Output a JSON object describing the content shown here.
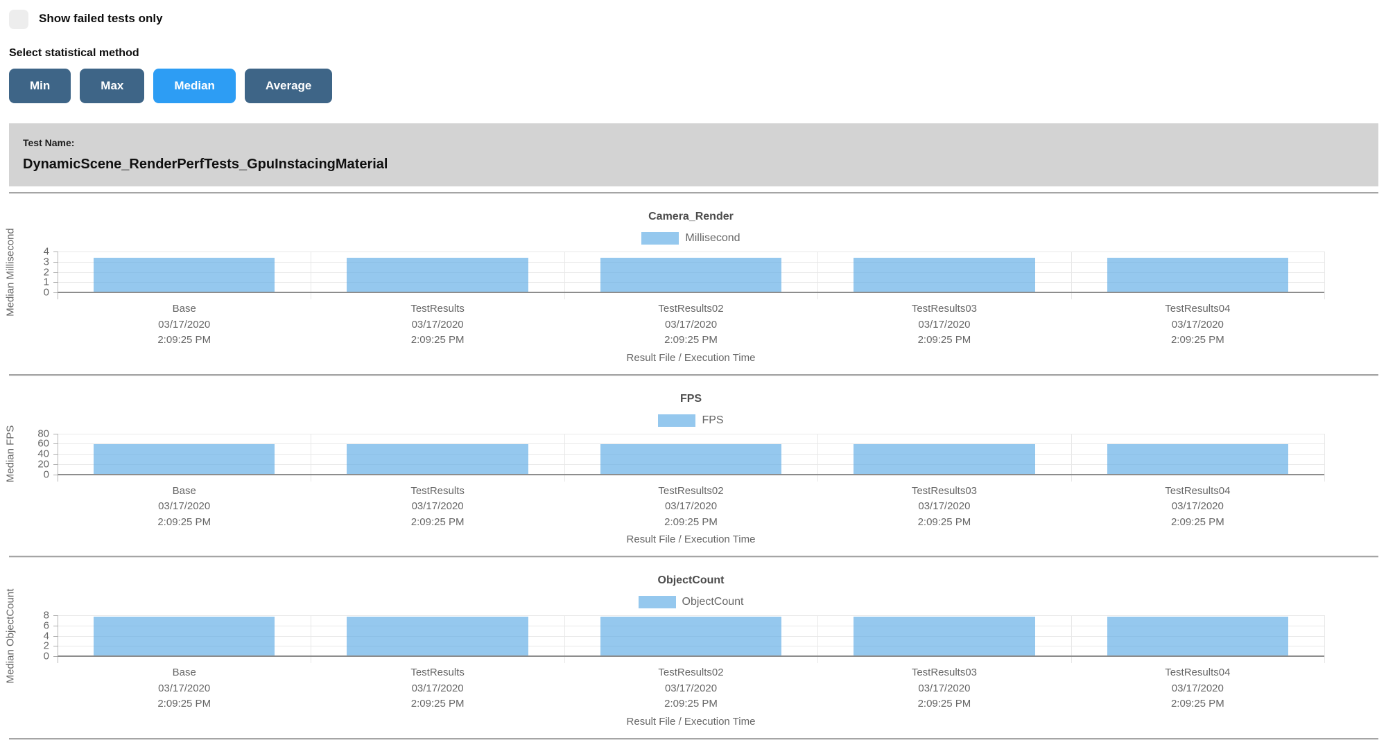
{
  "controls": {
    "show_failed_label": "Show failed tests only",
    "show_failed_checked": false,
    "stat_method_label": "Select statistical method",
    "buttons": [
      {
        "label": "Min",
        "active": false
      },
      {
        "label": "Max",
        "active": false
      },
      {
        "label": "Median",
        "active": true
      },
      {
        "label": "Average",
        "active": false
      }
    ]
  },
  "test_banner": {
    "label": "Test Name:",
    "name": "DynamicScene_RenderPerfTests_GpuInstacingMaterial"
  },
  "colors": {
    "button_inactive": "#3e6587",
    "button_active": "#2d9df4",
    "banner_bg": "#d3d3d3",
    "bar_fill": "#95c8ee",
    "chart_text": "#666666",
    "chart_title_text": "#4c4c4c"
  },
  "chart_data": [
    {
      "type": "bar",
      "title": "Camera_Render",
      "legend": "Millisecond",
      "ylabel": "Median Millisecond",
      "xlabel": "Result File / Execution Time",
      "ylim": [
        0,
        4
      ],
      "yticks": [
        0,
        1,
        2,
        3,
        4
      ],
      "grid": true,
      "legend_position": "top-center",
      "categories": [
        {
          "name": "Base",
          "date": "03/17/2020",
          "time": "2:09:25 PM"
        },
        {
          "name": "TestResults",
          "date": "03/17/2020",
          "time": "2:09:25 PM"
        },
        {
          "name": "TestResults02",
          "date": "03/17/2020",
          "time": "2:09:25 PM"
        },
        {
          "name": "TestResults03",
          "date": "03/17/2020",
          "time": "2:09:25 PM"
        },
        {
          "name": "TestResults04",
          "date": "03/17/2020",
          "time": "2:09:25 PM"
        }
      ],
      "values": [
        3.4,
        3.4,
        3.4,
        3.4,
        3.4
      ]
    },
    {
      "type": "bar",
      "title": "FPS",
      "legend": "FPS",
      "ylabel": "Median FPS",
      "xlabel": "Result File / Execution Time",
      "ylim": [
        0,
        80
      ],
      "yticks": [
        0,
        20,
        40,
        60,
        80
      ],
      "grid": true,
      "legend_position": "top-center",
      "categories": [
        {
          "name": "Base",
          "date": "03/17/2020",
          "time": "2:09:25 PM"
        },
        {
          "name": "TestResults",
          "date": "03/17/2020",
          "time": "2:09:25 PM"
        },
        {
          "name": "TestResults02",
          "date": "03/17/2020",
          "time": "2:09:25 PM"
        },
        {
          "name": "TestResults03",
          "date": "03/17/2020",
          "time": "2:09:25 PM"
        },
        {
          "name": "TestResults04",
          "date": "03/17/2020",
          "time": "2:09:25 PM"
        }
      ],
      "values": [
        59.5,
        59.5,
        59.5,
        59.5,
        59.5
      ]
    },
    {
      "type": "bar",
      "title": "ObjectCount",
      "legend": "ObjectCount",
      "ylabel": "Median ObjectCount",
      "xlabel": "Result File / Execution Time",
      "ylim": [
        0,
        8
      ],
      "yticks": [
        0,
        2,
        4,
        6,
        8
      ],
      "grid": true,
      "legend_position": "top-center",
      "categories": [
        {
          "name": "Base",
          "date": "03/17/2020",
          "time": "2:09:25 PM"
        },
        {
          "name": "TestResults",
          "date": "03/17/2020",
          "time": "2:09:25 PM"
        },
        {
          "name": "TestResults02",
          "date": "03/17/2020",
          "time": "2:09:25 PM"
        },
        {
          "name": "TestResults03",
          "date": "03/17/2020",
          "time": "2:09:25 PM"
        },
        {
          "name": "TestResults04",
          "date": "03/17/2020",
          "time": "2:09:25 PM"
        }
      ],
      "values": [
        7.7,
        7.7,
        7.7,
        7.7,
        7.7
      ]
    }
  ]
}
